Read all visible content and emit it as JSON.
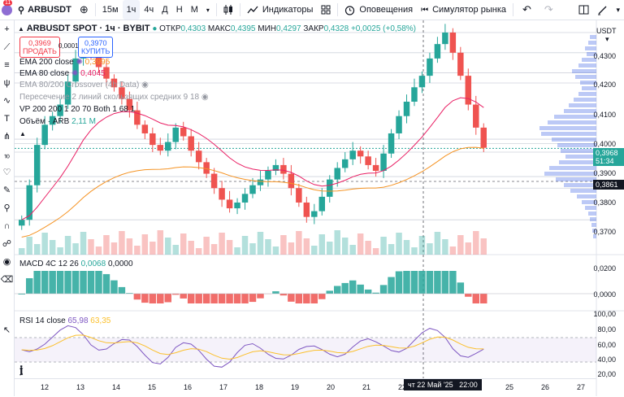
{
  "toolbar": {
    "symbol": "ARBUSDT",
    "intervals": [
      "15м",
      "1ч",
      "4ч",
      "Д",
      "Н",
      "М"
    ],
    "active_interval": "1ч",
    "indicators": "Индикаторы",
    "alerts": "Оповещения",
    "replay": "Симулятор рынка",
    "badge": "11"
  },
  "header": {
    "title": "ARBUSDT SPOT · 1ч · BYBIT",
    "ohlc_open_label": "ОТКР",
    "ohlc_open": "0,4303",
    "ohlc_high_label": "МАКС",
    "ohlc_high": "0,4395",
    "ohlc_low_label": "МИН",
    "ohlc_low": "0,4297",
    "ohlc_close_label": "ЗАКР",
    "ohlc_close": "0,4328",
    "change": "+0,0025 (+0,58%)"
  },
  "trade": {
    "sell_price": "0,3969",
    "sell_label": "ПРОДАТЬ",
    "spread": "0,0001",
    "buy_price": "0,3970",
    "buy_label": "КУПИТЬ"
  },
  "indicators": {
    "ema200_label": "EMA 200 close",
    "ema200_value": "0,3995",
    "ema80_label": "EMA 80 close",
    "ema80_value": "0,4045",
    "crossover": "EMA 80/200 Crossover (4h Data)",
    "crossing": "Пересечение 2 линий скользящих средних 9 18",
    "vp": "VP 200 200 1 20 70 Both 1 68 1",
    "volume_label": "Объём · ARB",
    "volume_value": "2,11 M",
    "macd_label": "MACD 4C 12 26",
    "macd_value1": "0,0068",
    "macd_value2": "0,0000",
    "rsi_label": "RSI 14 close",
    "rsi_value1": "65,98",
    "rsi_value2": "63,35"
  },
  "price_axis": {
    "currency": "USDT",
    "labels": [
      "0,4300",
      "0,4200",
      "0,4100",
      "0,4000",
      "0,3900",
      "0,3800",
      "0,3700"
    ],
    "current_price": "0,3968",
    "countdown": "51:34",
    "crosshair_price": "0,3861",
    "macd_labels": [
      "0,0200",
      "0,0000"
    ],
    "rsi_labels": [
      "100,00",
      "80,00",
      "60,00",
      "40,00",
      "20,00"
    ]
  },
  "time_axis": {
    "labels": [
      "12",
      "13",
      "14",
      "15",
      "16",
      "17",
      "18",
      "19",
      "20",
      "21",
      "22",
      "23",
      "24",
      "25",
      "26",
      "27"
    ],
    "crosshair_time": "чт 22 Май '25   22:00"
  },
  "colors": {
    "up": "#26a69a",
    "down": "#ef5350",
    "ema200": "#f59323",
    "ema80": "#e91e63",
    "rsi": "#7e57c2",
    "rsi_ma": "#fbc02d",
    "vp": "#3f63e6"
  },
  "chart_data": {
    "type": "candlestick",
    "symbol": "ARBUSDT",
    "candles_close": [
      0.372,
      0.384,
      0.398,
      0.405,
      0.408,
      0.412,
      0.42,
      0.428,
      0.433,
      0.429,
      0.425,
      0.421,
      0.418,
      0.414,
      0.41,
      0.405,
      0.402,
      0.398,
      0.396,
      0.399,
      0.404,
      0.401,
      0.396,
      0.392,
      0.388,
      0.383,
      0.379,
      0.376,
      0.378,
      0.381,
      0.384,
      0.386,
      0.389,
      0.391,
      0.388,
      0.383,
      0.378,
      0.373,
      0.375,
      0.38,
      0.386,
      0.39,
      0.393,
      0.396,
      0.394,
      0.391,
      0.389,
      0.395,
      0.402,
      0.408,
      0.413,
      0.418,
      0.422,
      0.428,
      0.433,
      0.437,
      0.43,
      0.422,
      0.412,
      0.404,
      0.397
    ],
    "ylim": [
      0.365,
      0.437
    ]
  }
}
